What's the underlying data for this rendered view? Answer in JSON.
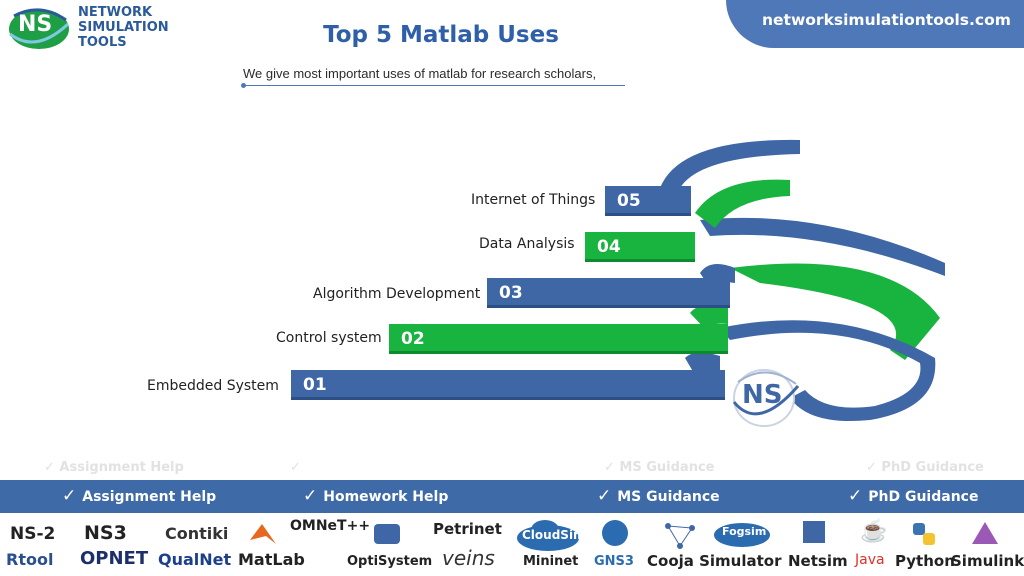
{
  "header": {
    "logo_mark": "NS",
    "logo_lines": [
      "NETWORK",
      "SIMULATION",
      "TOOLS"
    ],
    "site": "networksimulationtools.com",
    "title": "Top 5 Matlab Uses",
    "subtitle": "We give most important uses of matlab for research scholars,"
  },
  "steps": [
    {
      "num": "05",
      "label": "Internet of Things",
      "color": "blue"
    },
    {
      "num": "04",
      "label": "Data Analysis",
      "color": "green"
    },
    {
      "num": "03",
      "label": "Algorithm Development",
      "color": "blue"
    },
    {
      "num": "02",
      "label": "Control system",
      "color": "green"
    },
    {
      "num": "01",
      "label": "Embedded System",
      "color": "blue"
    }
  ],
  "center_logo": "NS",
  "services": [
    {
      "label": "Assignment Help",
      "icon": "check-icon"
    },
    {
      "label": "Homework Help",
      "icon": "check-icon"
    },
    {
      "label": "MS  Guidance",
      "icon": "check-icon"
    },
    {
      "label": "PhD  Guidance",
      "icon": "check-icon"
    }
  ],
  "tools": {
    "top": [
      "NS-2",
      "NS3",
      "Contiki",
      "OMNeT++",
      "Petrinet",
      "CloudSim",
      "Fogsim"
    ],
    "bottom": [
      "Rtool",
      "OPNET",
      "QualNet",
      "MatLab",
      "OptiSystem",
      "veins",
      "Mininet",
      "GNS3",
      "Cooja Simulator",
      "Netsim",
      "Java",
      "Python",
      "Simulink"
    ]
  },
  "colors": {
    "blue": "#3f67a5",
    "green": "#19b33f",
    "strip": "#3f6aa8",
    "title": "#2e5fa8"
  }
}
